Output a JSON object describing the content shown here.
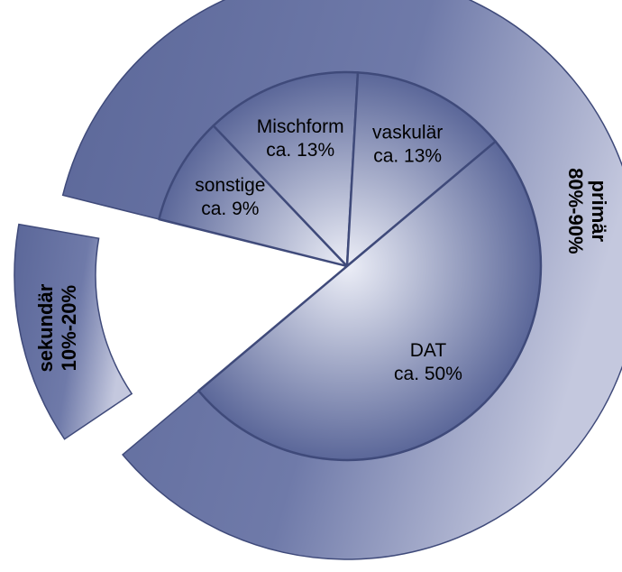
{
  "chart_data": {
    "type": "pie",
    "color": "#5b6799",
    "inner": {
      "categories": [
        "sonstige",
        "Mischform",
        "vaskulär",
        "DAT"
      ],
      "values": [
        9,
        13,
        13,
        50
      ],
      "value_labels": [
        "ca. 9%",
        "ca. 13%",
        "ca. 13%",
        "ca. 50%"
      ]
    },
    "outer": {
      "categories": [
        "primär",
        "sekundär"
      ],
      "values": [
        85,
        15
      ],
      "value_labels": [
        "80%-90%",
        "10%-20%"
      ]
    }
  }
}
